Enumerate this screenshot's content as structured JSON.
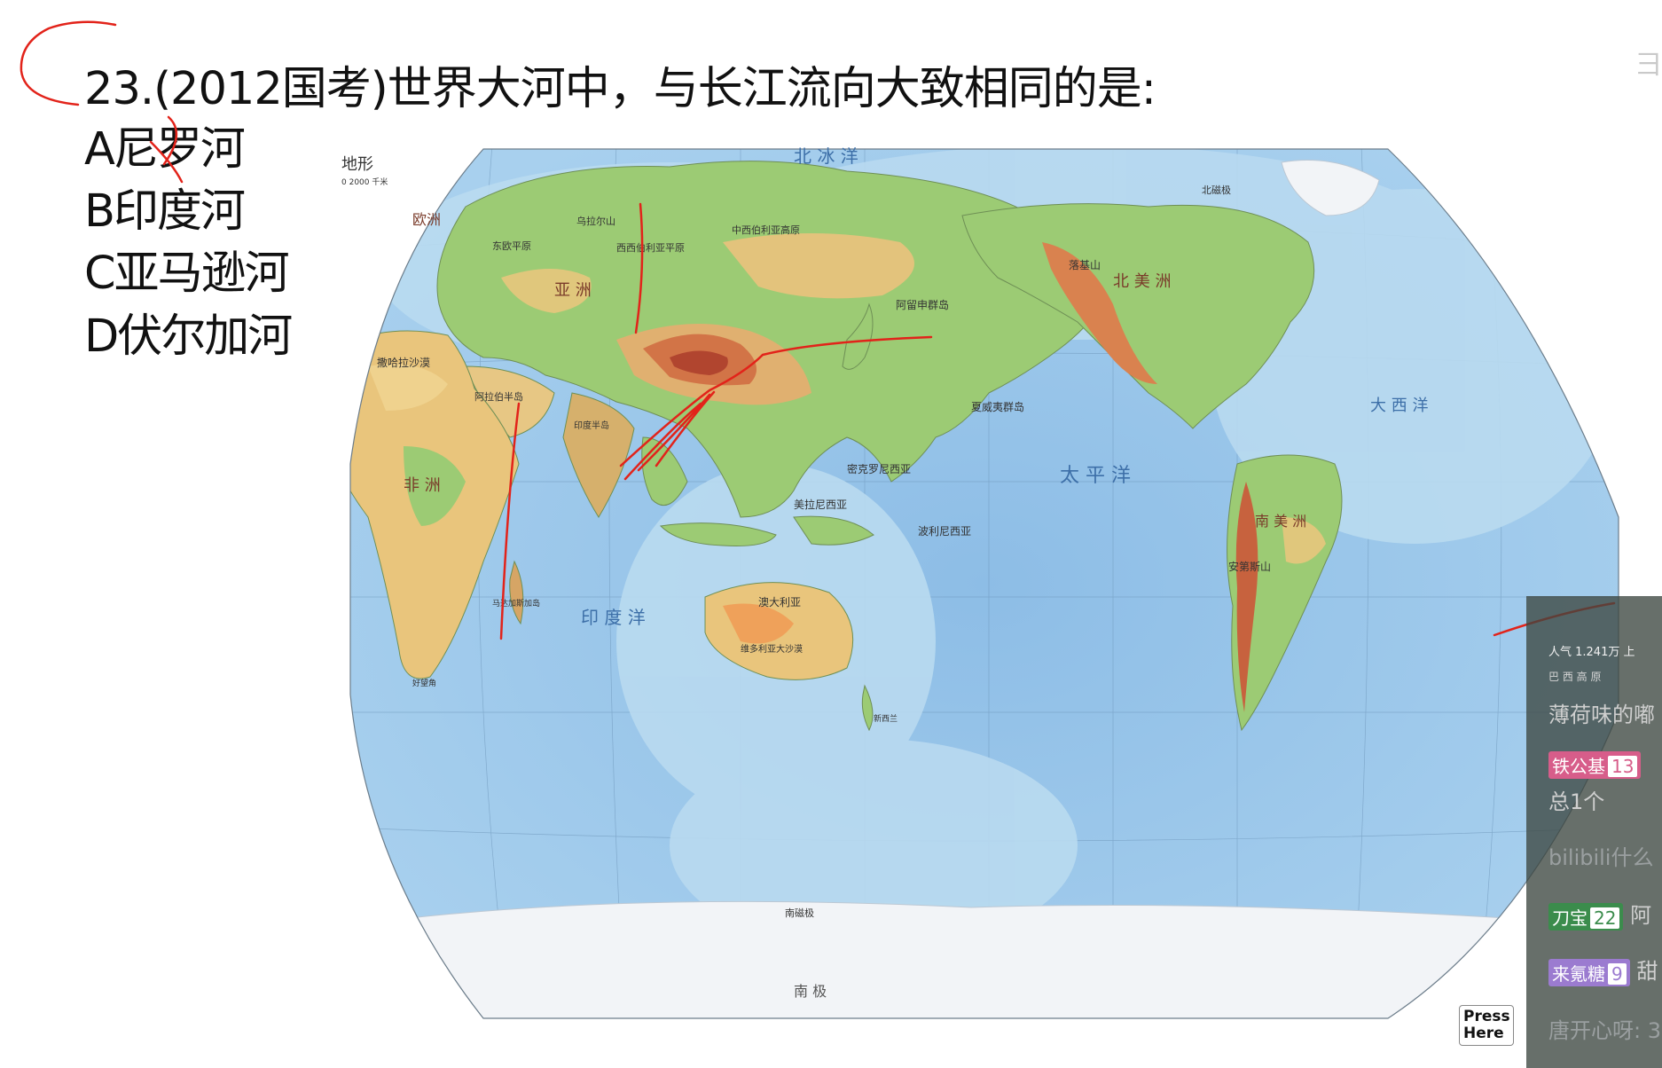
{
  "question": {
    "title": "23.(2012国考)世界大河中，与长江流向大致相同的是:",
    "options": [
      "A尼罗河",
      "B印度河",
      "C亚马逊河",
      "D伏尔加河"
    ]
  },
  "map": {
    "legend_title": "地形",
    "legend_scale": "0  2000 千米",
    "labels": {
      "arctic_ocean": "北   冰   洋",
      "pacific": "太   平   洋",
      "indian_ocean": "印   度   洋",
      "atlantic": "大 西 洋",
      "antarctica": "南          极",
      "sahara": "撒哈拉沙漠",
      "arabia": "阿拉伯半岛",
      "india": "印度半岛",
      "west_siberia": "西西伯利亚平原",
      "central_siberia": "中西伯利亚高原",
      "east_europe": "东欧平原",
      "ural": "乌拉尔山",
      "aleutian": "阿留申群岛",
      "hawaii": "夏威夷群岛",
      "australia": "澳大利亚",
      "great_desert": "维多利亚大沙漠",
      "polynesia": "波利尼西亚",
      "melanesia": "美拉尼西亚",
      "micronesia": "密克罗尼西亚",
      "rockies": "落基山",
      "andes": "安第斯山",
      "madagascar": "马达加斯加岛",
      "new_zealand": "新西兰",
      "cape": "好望角",
      "south_pole_mag": "南磁极",
      "north_pole_mag": "北磁极",
      "africa": "非 洲",
      "asia": "亚 洲",
      "europe": "欧洲",
      "north_america": "北 美 洲",
      "south_america": "南 美 洲"
    }
  },
  "overlay": {
    "press_here_line1": "Press",
    "press_here_line2": "Here",
    "corner_glyph": "⺕"
  },
  "chat": {
    "popularity": "人气  1.241万  上",
    "line1": "巴 西 高 原",
    "line2": "薄荷味的嘟",
    "badge1_name": "铁公基",
    "badge1_level": "13",
    "line3": "总1个",
    "line4": "bilibili什么",
    "badge2_name": "刀宝",
    "badge2_level": "22",
    "badge2_text": "阿",
    "badge3_name": "来氪糖",
    "badge3_level": "9",
    "badge3_text": "甜",
    "line5": "唐开心呀: 3"
  },
  "colors": {
    "ocean_deep": "#74a9d8",
    "ocean_shallow": "#b9d9ef",
    "lowland": "#8fc46e",
    "upland": "#e8cf82",
    "highland": "#d9824f",
    "peak": "#b94c33",
    "ice": "#f4f6f8",
    "ink": "#e2231a"
  }
}
